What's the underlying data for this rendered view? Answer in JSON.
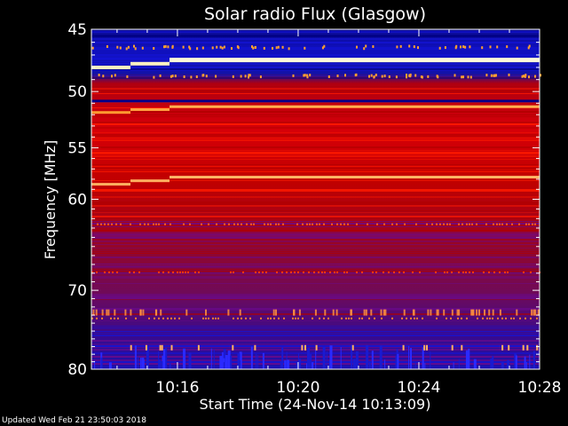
{
  "chart_data": {
    "type": "heatmap",
    "title": "Solar radio Flux (Glasgow)",
    "xlabel": "Start Time (24-Nov-14 10:13:09)",
    "ylabel": "Frequency [MHz]",
    "x_ticks": [
      "10:16",
      "10:20",
      "10:24",
      "10:28"
    ],
    "y_ticks": [
      "45",
      "50",
      "55",
      "60",
      "70",
      "80"
    ],
    "y_scale": "log",
    "ylim": [
      45,
      80
    ],
    "xlim": [
      "10:13:09",
      "10:28:00"
    ],
    "colormap": [
      "#00007a",
      "#1414d8",
      "#6a0a8c",
      "#b00000",
      "#ff1a00",
      "#ffc060"
    ],
    "strong_emission_lines_mhz": [
      47.4,
      48.0,
      51.3,
      51.8,
      57.8,
      58.5
    ]
  },
  "footer": {
    "updated": "Updated Wed Feb 21 23:50:03 2018"
  }
}
